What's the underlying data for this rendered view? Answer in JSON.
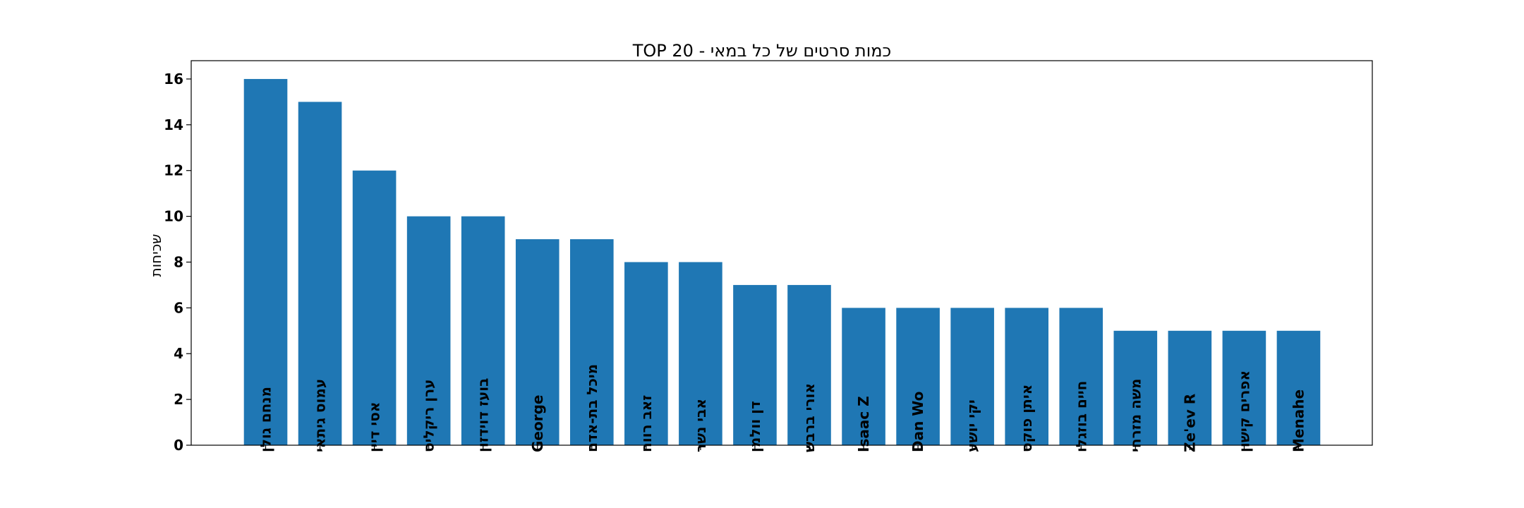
{
  "chart_data": {
    "type": "bar",
    "title": "כמות סרטים של כל במאי - TOP 20",
    "xlabel": "",
    "ylabel": "שכיחות",
    "ylim": [
      0,
      16.8
    ],
    "yticks": [
      0,
      2,
      4,
      6,
      8,
      10,
      12,
      14,
      16
    ],
    "grid": false,
    "categories": [
      "מנחם גולן",
      "עמוס גיתאי",
      "אסי דיין",
      "ערן ריקליס",
      "בועז דוידזון",
      "George",
      "מיכל בת-אדם",
      "זאב רווח",
      "אבי נשר",
      "דן וולמן",
      "אורי ברבש",
      "Isaac Z",
      "Dan Wo",
      "יקי יושע",
      "איתן פוקס",
      "חיים בוזגלו",
      "משה מזרחי",
      "Ze'ev R",
      "אפרים קישון",
      "Menahe"
    ],
    "values": [
      16,
      15,
      12,
      10,
      10,
      9,
      9,
      8,
      8,
      7,
      7,
      6,
      6,
      6,
      6,
      6,
      5,
      5,
      5,
      5
    ],
    "bar_color": "#1f77b4"
  }
}
